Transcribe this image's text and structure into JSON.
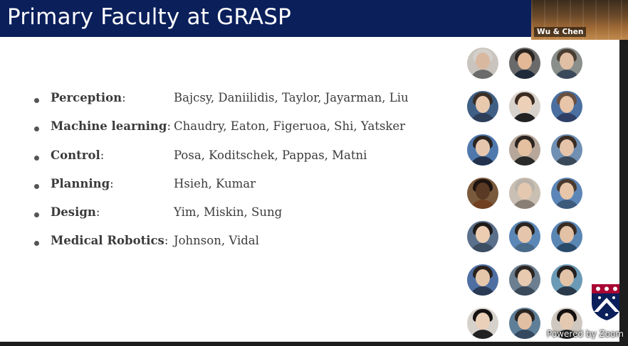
{
  "slide": {
    "title": "Primary Faculty at GRASP",
    "groups": [
      {
        "area": "Perception",
        "sep": ":",
        "names": "Bajcsy, Daniilidis, Taylor, Jayarman, Liu"
      },
      {
        "area": "Machine learning",
        "sep": ":",
        "names": "Chaudry, Eaton, Figeruoa, Shi, Yatsker"
      },
      {
        "area": "Control",
        "sep": ":",
        "names": "Posa, Koditschek, Pappas, Matni"
      },
      {
        "area": "Planning",
        "sep": ":",
        "names": "Hsieh, Kumar"
      },
      {
        "area": "Design",
        "sep": ":",
        "names": "Yim, Miskin, Sung"
      },
      {
        "area": "Medical Robotics",
        "sep": ":",
        "names": "Johnson, Vidal"
      }
    ],
    "faculty_photos": {
      "count": 21,
      "icon": "portrait-photo-icon"
    },
    "logo": {
      "name": "university-shield-logo",
      "colors": {
        "shield": "#0b1f5b",
        "chief": "#a90533",
        "chevron": "#ffffff"
      }
    }
  },
  "video": {
    "participant_label": "Wu & Chen"
  },
  "zoom": {
    "watermark": "Powered by Zoom"
  },
  "colors": {
    "title_bar": "#0b1f5b",
    "title_text": "#ffffff",
    "body_text": "#3b3b3b",
    "bullet": "#555555"
  }
}
